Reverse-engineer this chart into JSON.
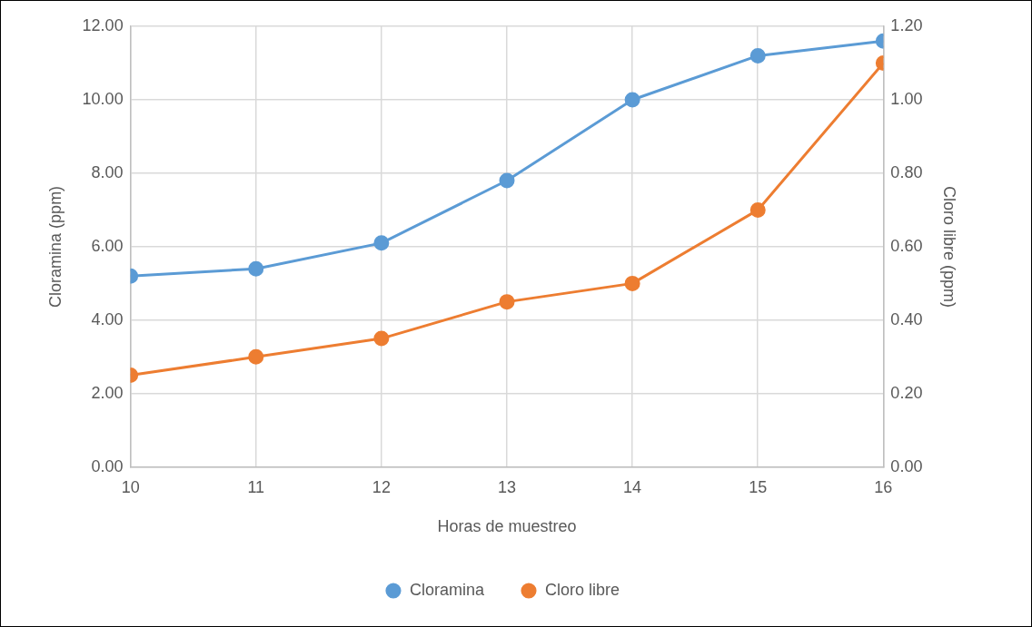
{
  "chart_data": {
    "type": "line",
    "xlabel": "Horas de muestreo",
    "ylabel": "Cloramina (ppm)",
    "y2label": "Cloro libre (ppm)",
    "x": [
      10,
      11,
      12,
      13,
      14,
      15,
      16
    ],
    "xlim": [
      10,
      16
    ],
    "xticks": [
      10,
      11,
      12,
      13,
      14,
      15,
      16
    ],
    "ylim": [
      0,
      12
    ],
    "yticks": [
      {
        "value": 0,
        "label": "0.00"
      },
      {
        "value": 2,
        "label": "2.00"
      },
      {
        "value": 4,
        "label": "4.00"
      },
      {
        "value": 6,
        "label": "6.00"
      },
      {
        "value": 8,
        "label": "8.00"
      },
      {
        "value": 10,
        "label": "10.00"
      },
      {
        "value": 12,
        "label": "12.00"
      }
    ],
    "y2lim": [
      0,
      1.2
    ],
    "y2ticks": [
      {
        "value": 0,
        "label": "0.00"
      },
      {
        "value": 0.2,
        "label": "0.20"
      },
      {
        "value": 0.4,
        "label": "0.40"
      },
      {
        "value": 0.6,
        "label": "0.60"
      },
      {
        "value": 0.8,
        "label": "0.80"
      },
      {
        "value": 1,
        "label": "1.00"
      },
      {
        "value": 1.2,
        "label": "1.20"
      }
    ],
    "series": [
      {
        "name": "Cloramina",
        "color": "#5b9bd5",
        "values": [
          5.2,
          5.4,
          6.1,
          7.8,
          10.0,
          11.2,
          11.6
        ]
      },
      {
        "name": "Cloro libre",
        "color": "#ed7d31",
        "axis": "y2",
        "values": [
          0.25,
          0.3,
          0.35,
          0.45,
          0.5,
          0.7,
          1.1
        ]
      }
    ],
    "grid": true,
    "legend": "bottom",
    "marker": "circle",
    "line_style": "solid"
  }
}
